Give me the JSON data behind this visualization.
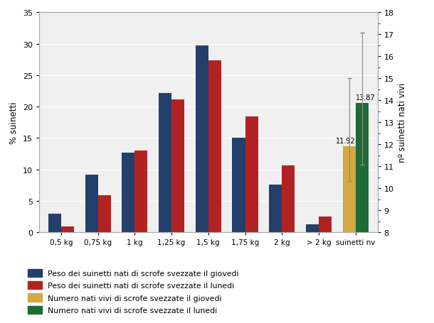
{
  "categories_left": [
    "0,5 kg",
    "0,75 kg",
    "1 kg",
    "1,25 kg",
    "1,5 kg",
    "1,75 kg",
    "2 kg",
    "> 2 kg"
  ],
  "blue_values": [
    3.0,
    9.2,
    12.7,
    22.2,
    29.7,
    15.0,
    7.6,
    1.3
  ],
  "red_values": [
    0.9,
    5.9,
    13.0,
    21.2,
    27.3,
    18.4,
    10.7,
    2.5
  ],
  "yellow_value": 11.92,
  "green_value": 13.87,
  "yellow_error_low": 1.6,
  "yellow_error_high": 3.1,
  "green_error_low": 2.8,
  "green_error_high": 3.2,
  "blue_color": "#243F6B",
  "red_color": "#B22222",
  "yellow_color": "#D4A843",
  "green_color": "#1E6B35",
  "bg_color": "#F0F0F0",
  "ylabel_left": "% suinetti",
  "ylabel_right": "nº suinetti nati vivi",
  "ylim_left": [
    0,
    35
  ],
  "ylim_right": [
    8,
    18
  ],
  "yticks_left": [
    0,
    5,
    10,
    15,
    20,
    25,
    30,
    35
  ],
  "yticks_right": [
    8,
    9,
    10,
    11,
    12,
    13,
    14,
    15,
    16,
    17,
    18
  ],
  "right_category": "suinetti nv",
  "label_blue": "Peso dei suinetti nati di scrofe svezzate il giovedi",
  "label_red": "Peso dei suinetti nati di scrofe svezzate il lunedi",
  "label_yellow": "Numero nati vivi di scrofe svezzate il giovedi",
  "label_green": "Numero nati vivi di scrofe svezzate il lunedi"
}
